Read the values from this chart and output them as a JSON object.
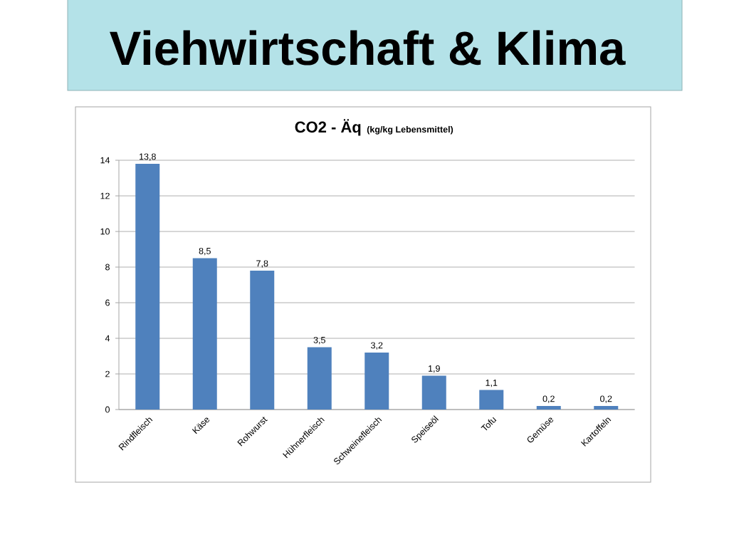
{
  "chart_data": {
    "type": "bar",
    "title": "Viehwirtschaft & Klima",
    "subtitle": "CO2 - Äq",
    "annotations": [
      "(kg/kg Lebensmittel)"
    ],
    "categories": [
      "Rindfleisch",
      "Käse",
      "Rohwurst",
      "Hühnerfleisch",
      "Schweinefleisch",
      "Speiseöl",
      "Tofu",
      "Gemüse",
      "Kartoffeln"
    ],
    "values": [
      13.8,
      8.5,
      7.8,
      3.5,
      3.2,
      1.9,
      1.1,
      0.2,
      0.2
    ],
    "value_labels": [
      "13,8",
      "8,5",
      "7,8",
      "3,5",
      "3,2",
      "1,9",
      "1,1",
      "0,2",
      "0,2"
    ],
    "color": "#4f81bd",
    "ylim": [
      0,
      14
    ],
    "yticks": [
      0,
      2,
      4,
      6,
      8,
      10,
      12,
      14
    ],
    "grid": "y"
  }
}
